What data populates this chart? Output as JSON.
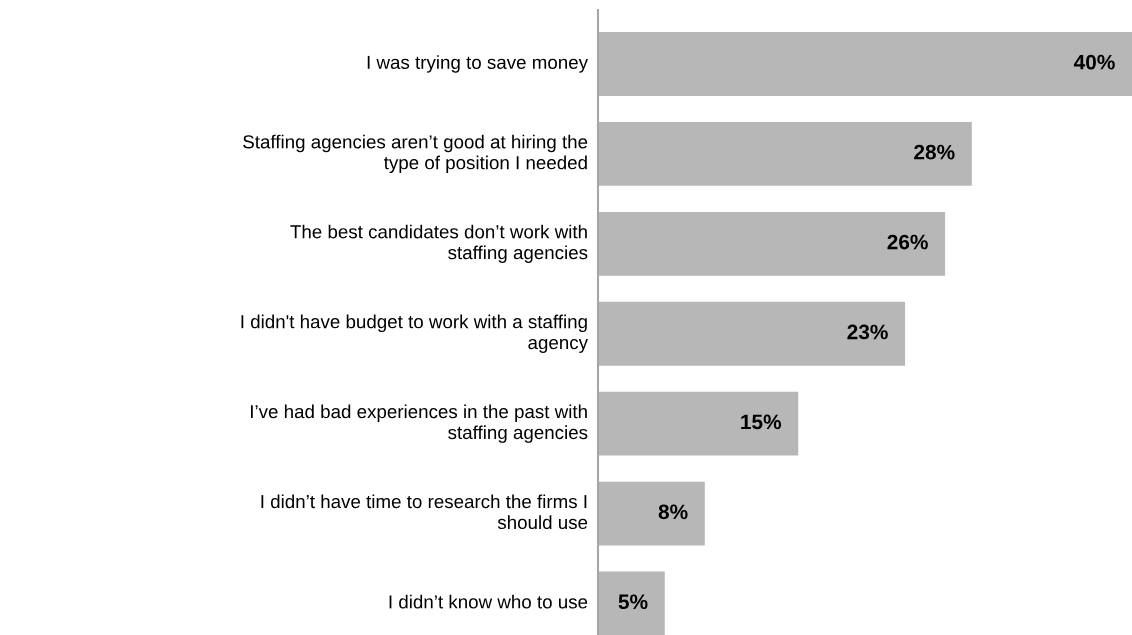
{
  "chart_data": {
    "type": "bar",
    "orientation": "horizontal",
    "categories": [
      "I was trying to save money",
      "Staffing agencies aren’t good at hiring the type of position I needed",
      "The best candidates don’t work with staffing agencies",
      "I didn't have budget to work with a staffing agency",
      "I’ve had bad experiences in the past with staffing agencies",
      "I didn’t have time to research the firms I should use",
      "I didn’t know who to use"
    ],
    "values": [
      40,
      28,
      26,
      23,
      15,
      8,
      5
    ],
    "value_labels": [
      "40%",
      "28%",
      "26%",
      "23%",
      "15%",
      "8%",
      "5%"
    ],
    "color": "#b7b7b7"
  }
}
